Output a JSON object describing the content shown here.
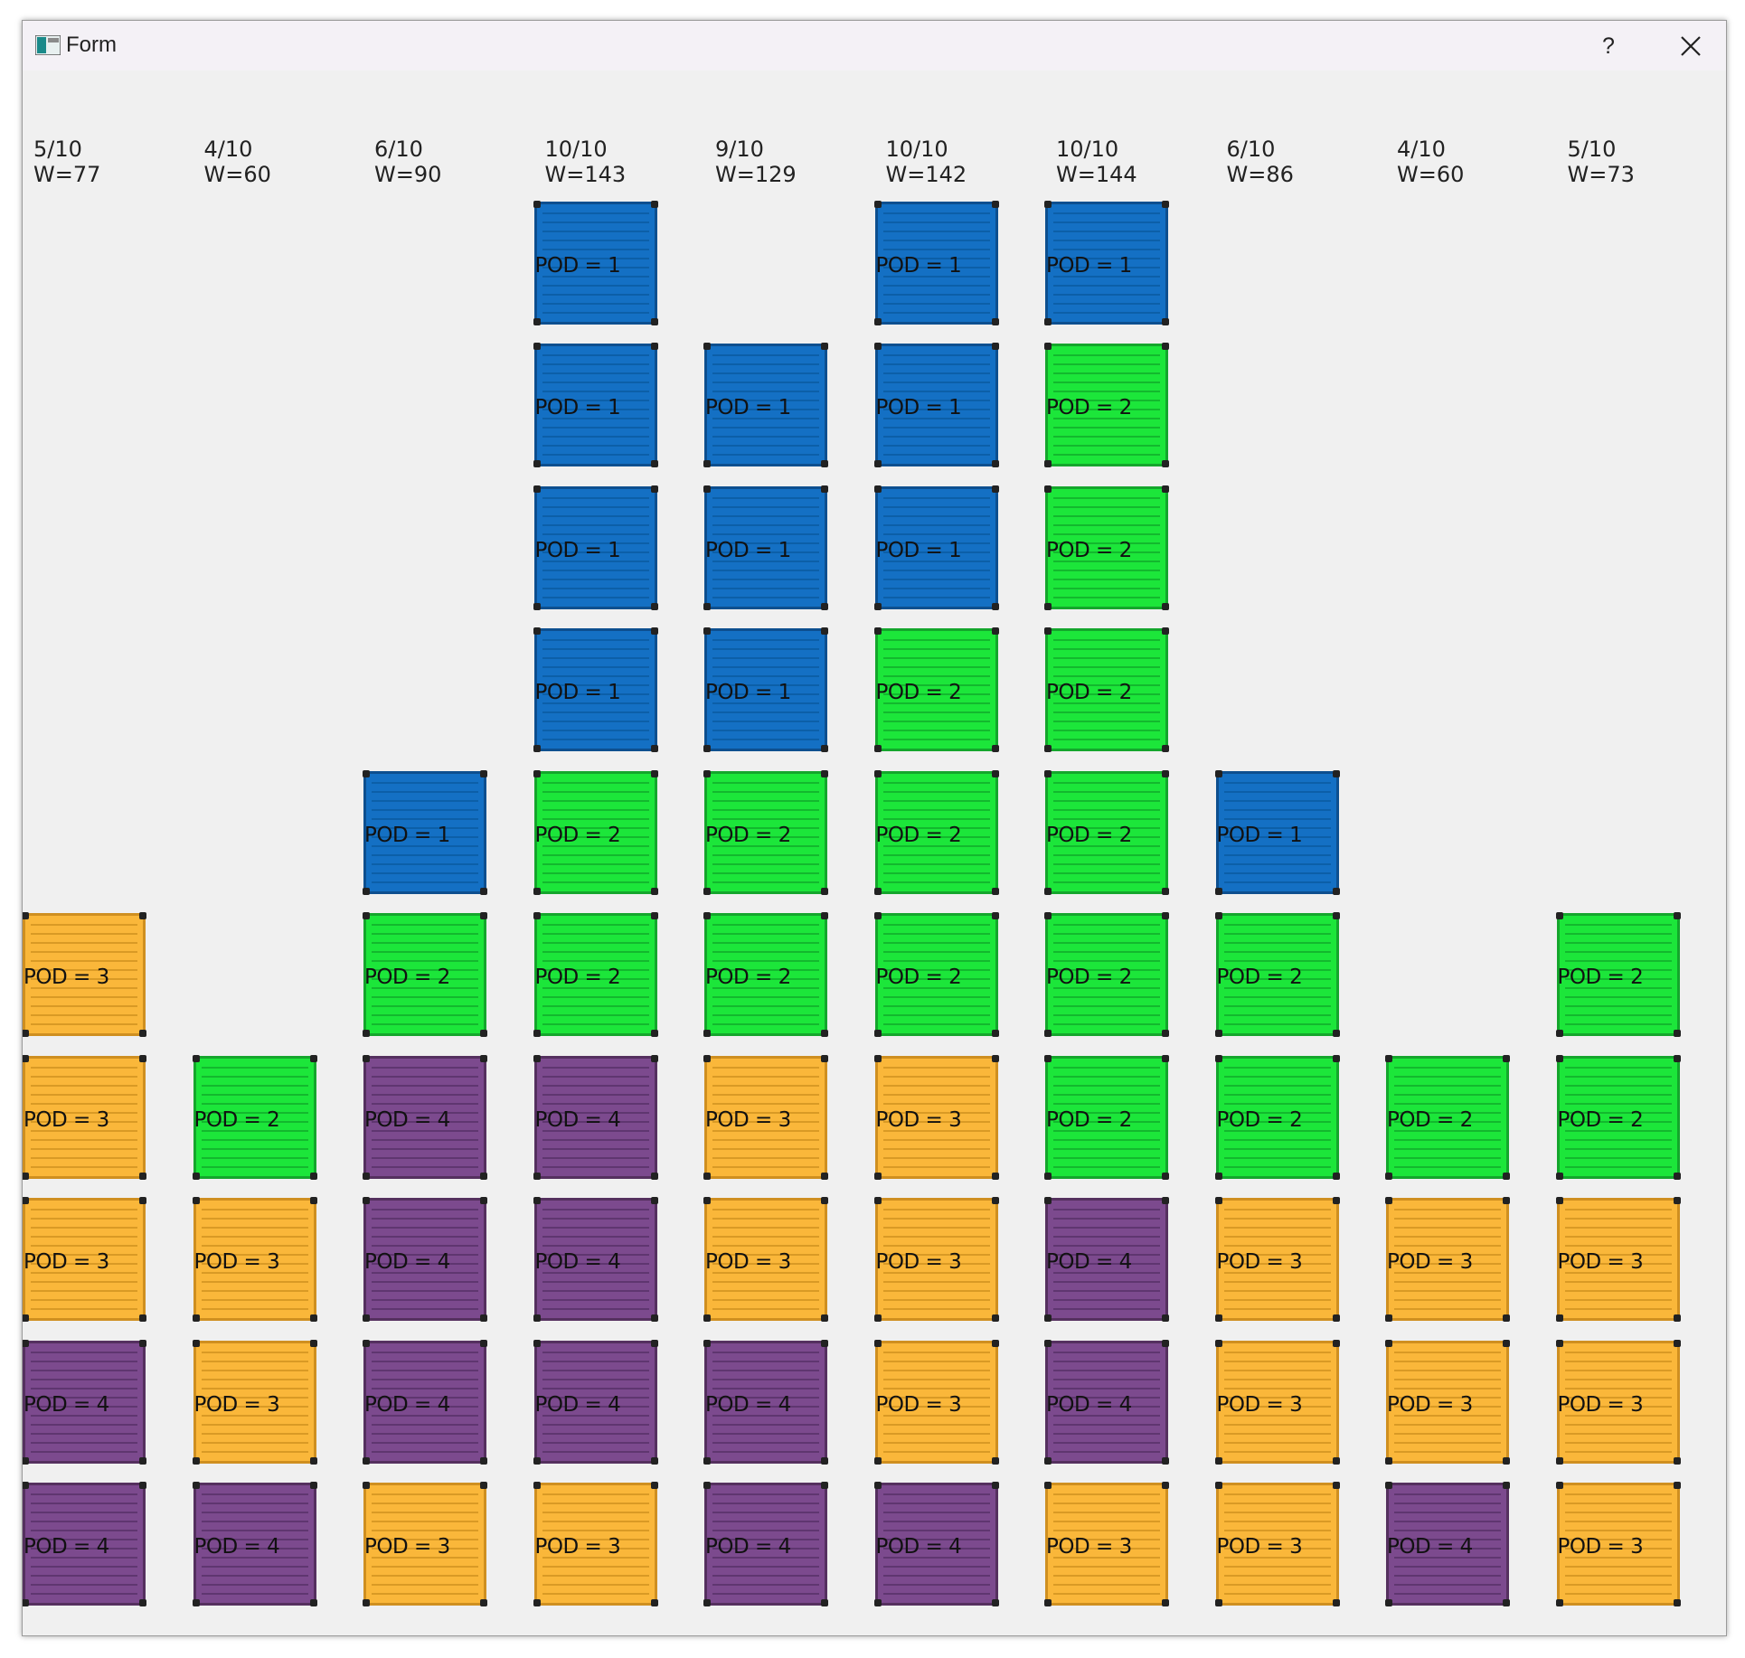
{
  "window": {
    "title": "Form",
    "help_label": "?"
  },
  "columns": [
    {
      "count": "5/10",
      "weight": "W=77",
      "stack_top_to_bottom": [
        3,
        3,
        3,
        4,
        4
      ]
    },
    {
      "count": "4/10",
      "weight": "W=60",
      "stack_top_to_bottom": [
        2,
        3,
        3,
        4
      ]
    },
    {
      "count": "6/10",
      "weight": "W=90",
      "stack_top_to_bottom": [
        1,
        2,
        4,
        4,
        4,
        3
      ]
    },
    {
      "count": "10/10",
      "weight": "W=143",
      "stack_top_to_bottom": [
        1,
        1,
        1,
        1,
        2,
        2,
        4,
        4,
        4,
        3
      ]
    },
    {
      "count": "9/10",
      "weight": "W=129",
      "stack_top_to_bottom": [
        1,
        1,
        1,
        2,
        2,
        3,
        3,
        4,
        4
      ]
    },
    {
      "count": "10/10",
      "weight": "W=142",
      "stack_top_to_bottom": [
        1,
        1,
        1,
        2,
        2,
        2,
        3,
        3,
        3,
        4
      ]
    },
    {
      "count": "10/10",
      "weight": "W=144",
      "stack_top_to_bottom": [
        1,
        2,
        2,
        2,
        2,
        2,
        2,
        4,
        4,
        3
      ]
    },
    {
      "count": "6/10",
      "weight": "W=86",
      "stack_top_to_bottom": [
        1,
        2,
        2,
        3,
        3,
        3
      ]
    },
    {
      "count": "4/10",
      "weight": "W=60",
      "stack_top_to_bottom": [
        2,
        3,
        3,
        4
      ]
    },
    {
      "count": "5/10",
      "weight": "W=73",
      "stack_top_to_bottom": [
        2,
        2,
        3,
        3,
        3
      ]
    }
  ],
  "label_prefix": "POD = ",
  "colors": {
    "pod1": "#1470c4",
    "pod2": "#1ce63a",
    "pod3": "#fab73a",
    "pod4": "#7c4a8e"
  }
}
